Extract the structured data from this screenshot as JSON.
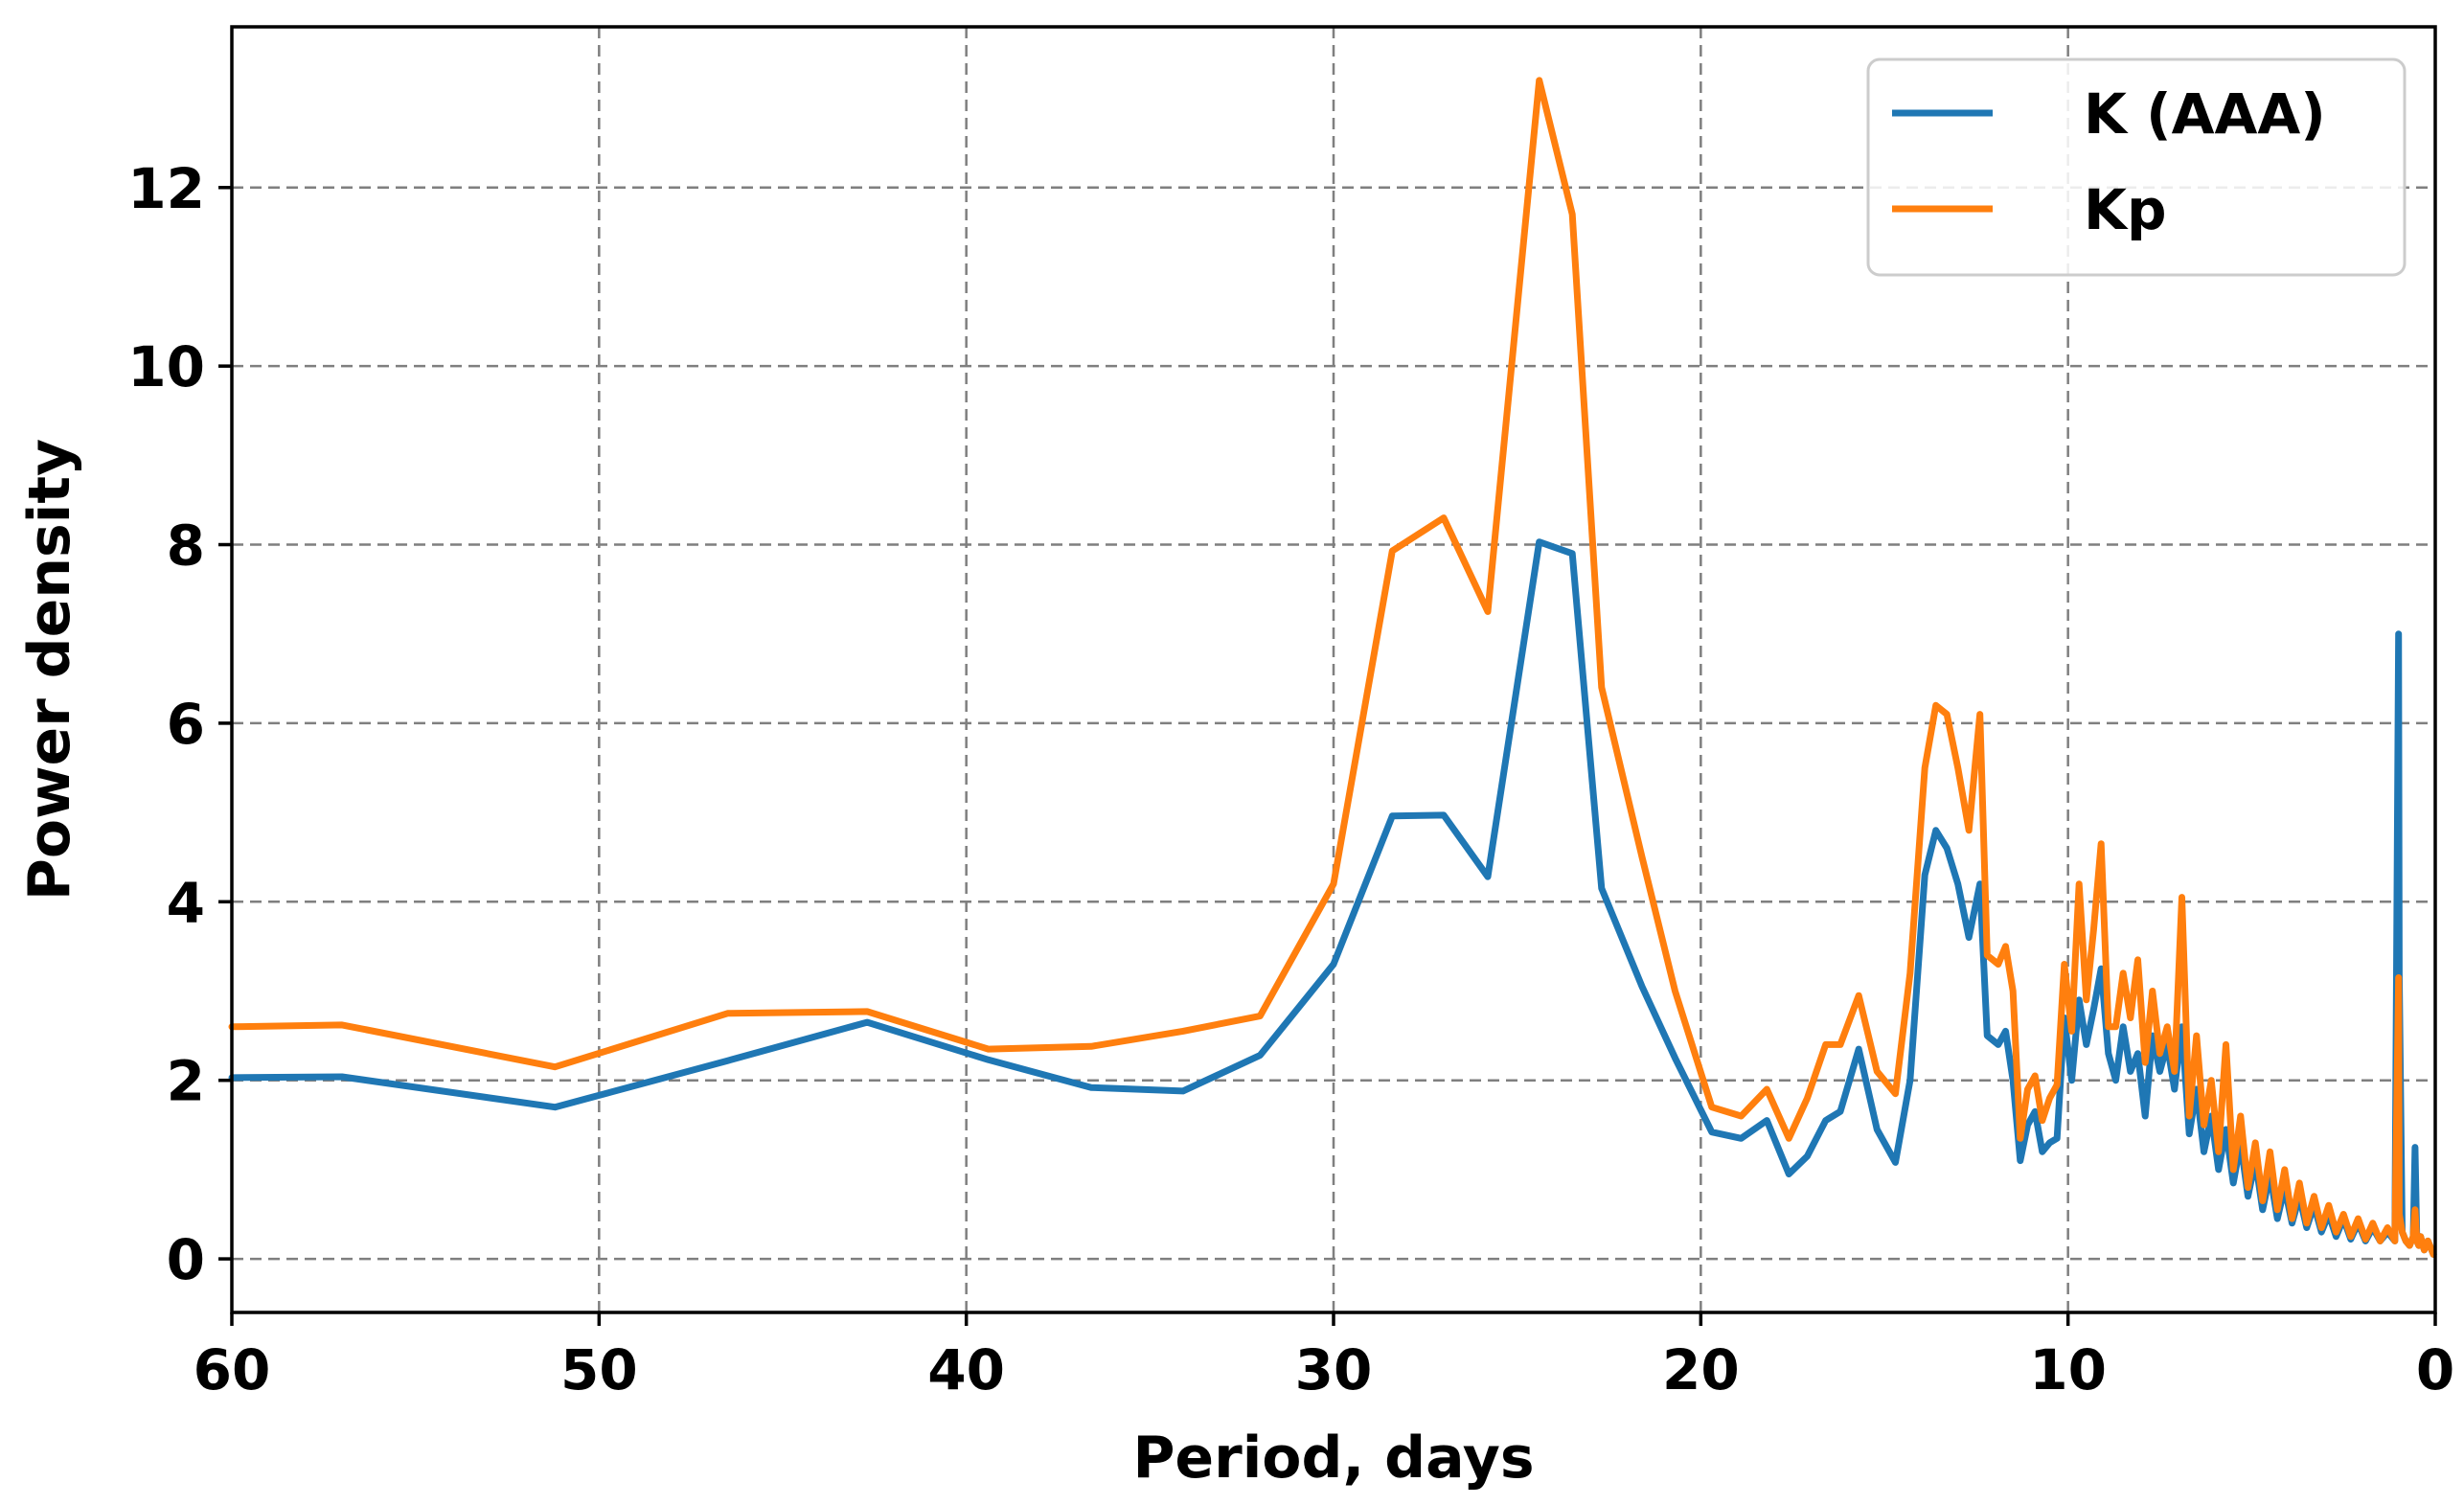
{
  "chart_data": {
    "type": "line",
    "xlabel": "Period, days",
    "ylabel": "Power density",
    "xlim": [
      60,
      0
    ],
    "ylim": [
      -0.6,
      13.8
    ],
    "x_ticks": [
      60,
      50,
      40,
      30,
      20,
      10,
      0
    ],
    "y_ticks": [
      0,
      2,
      4,
      6,
      8,
      10,
      12
    ],
    "x_tick_labels": [
      "60",
      "50",
      "40",
      "30",
      "20",
      "10",
      "0"
    ],
    "y_tick_labels": [
      "0",
      "2",
      "4",
      "6",
      "8",
      "10",
      "12"
    ],
    "grid": true,
    "legend": {
      "position": "top-right"
    },
    "series": [
      {
        "name": "K (AAA)",
        "color": "#1f77b4",
        "x": [
          60,
          57,
          51.2,
          46.5,
          42.7,
          39.4,
          36.6,
          34.1,
          32,
          30,
          28.4,
          27,
          25.8,
          24.4,
          23.5,
          22.7,
          21.6,
          20.7,
          19.7,
          18.9,
          18.2,
          17.6,
          17.1,
          16.6,
          16.2,
          15.7,
          15.2,
          14.7,
          14.3,
          13.9,
          13.6,
          13.3,
          13,
          12.7,
          12.4,
          12.2,
          11.9,
          11.7,
          11.5,
          11.3,
          11.1,
          10.9,
          10.7,
          10.5,
          10.3,
          10.1,
          9.9,
          9.7,
          9.5,
          9.3,
          9.1,
          8.9,
          8.7,
          8.5,
          8.3,
          8.1,
          7.9,
          7.7,
          7.5,
          7.3,
          7.1,
          6.9,
          6.7,
          6.5,
          6.3,
          6.1,
          5.9,
          5.7,
          5.5,
          5.3,
          5.1,
          4.9,
          4.7,
          4.5,
          4.3,
          4.1,
          3.9,
          3.7,
          3.5,
          3.3,
          3.1,
          2.9,
          2.7,
          2.5,
          2.3,
          2.1,
          1.9,
          1.7,
          1.5,
          1.3,
          1.1,
          1.0,
          0.98,
          0.9,
          0.8,
          0.7,
          0.6,
          0.55,
          0.5,
          0.45,
          0.4,
          0.3,
          0.2,
          0.1,
          0.05
        ],
        "y": [
          2.03,
          2.04,
          1.7,
          2.22,
          2.65,
          2.23,
          1.92,
          1.88,
          2.28,
          3.3,
          4.96,
          4.97,
          4.28,
          8.03,
          7.9,
          4.15,
          3.05,
          2.25,
          1.42,
          1.35,
          1.55,
          0.95,
          1.15,
          1.55,
          1.65,
          2.35,
          1.45,
          1.08,
          2.0,
          4.3,
          4.8,
          4.6,
          4.2,
          3.6,
          4.2,
          2.5,
          2.4,
          2.55,
          2.0,
          1.1,
          1.5,
          1.65,
          1.2,
          1.3,
          1.35,
          2.7,
          2.0,
          2.9,
          2.4,
          2.8,
          3.25,
          2.3,
          2.0,
          2.6,
          2.1,
          2.3,
          1.6,
          2.5,
          2.1,
          2.4,
          1.9,
          2.6,
          1.4,
          1.9,
          1.2,
          1.6,
          1.0,
          1.45,
          0.85,
          1.3,
          0.7,
          1.1,
          0.55,
          0.95,
          0.45,
          0.8,
          0.4,
          0.7,
          0.35,
          0.6,
          0.3,
          0.5,
          0.25,
          0.45,
          0.22,
          0.4,
          0.2,
          0.35,
          0.2,
          0.3,
          0.2,
          7.0,
          3.2,
          0.3,
          0.2,
          0.15,
          0.25,
          1.25,
          0.2,
          0.15,
          0.25,
          0.1,
          0.2,
          0.1,
          0.05
        ]
      },
      {
        "name": "Kp",
        "color": "#ff7f0e",
        "x": [
          60,
          57,
          51.2,
          46.5,
          42.7,
          39.4,
          36.6,
          34.1,
          32,
          30,
          28.4,
          27,
          25.8,
          24.4,
          23.5,
          22.7,
          21.6,
          20.7,
          19.7,
          18.9,
          18.2,
          17.6,
          17.1,
          16.6,
          16.2,
          15.7,
          15.2,
          14.7,
          14.3,
          13.9,
          13.6,
          13.3,
          13,
          12.7,
          12.4,
          12.2,
          11.9,
          11.7,
          11.5,
          11.3,
          11.1,
          10.9,
          10.7,
          10.5,
          10.3,
          10.1,
          9.9,
          9.7,
          9.5,
          9.3,
          9.1,
          8.9,
          8.7,
          8.5,
          8.3,
          8.1,
          7.9,
          7.7,
          7.5,
          7.3,
          7.1,
          6.9,
          6.7,
          6.5,
          6.3,
          6.1,
          5.9,
          5.7,
          5.5,
          5.3,
          5.1,
          4.9,
          4.7,
          4.5,
          4.3,
          4.1,
          3.9,
          3.7,
          3.5,
          3.3,
          3.1,
          2.9,
          2.7,
          2.5,
          2.3,
          2.1,
          1.9,
          1.7,
          1.5,
          1.3,
          1.1,
          1.0,
          0.98,
          0.9,
          0.8,
          0.7,
          0.6,
          0.55,
          0.5,
          0.45,
          0.4,
          0.3,
          0.2,
          0.1,
          0.05
        ],
        "y": [
          2.6,
          2.62,
          2.15,
          2.75,
          2.77,
          2.35,
          2.38,
          2.55,
          2.72,
          4.2,
          7.93,
          8.3,
          7.25,
          13.2,
          11.7,
          6.4,
          4.5,
          3.0,
          1.7,
          1.6,
          1.9,
          1.35,
          1.8,
          2.4,
          2.4,
          2.95,
          2.1,
          1.85,
          3.2,
          5.5,
          6.2,
          6.1,
          5.5,
          4.8,
          6.1,
          3.4,
          3.3,
          3.5,
          3.0,
          1.35,
          1.9,
          2.05,
          1.55,
          1.8,
          1.95,
          3.3,
          2.55,
          4.2,
          2.9,
          3.7,
          4.65,
          2.6,
          2.6,
          3.2,
          2.7,
          3.35,
          2.2,
          3.0,
          2.3,
          2.6,
          2.1,
          4.05,
          1.6,
          2.5,
          1.5,
          2.0,
          1.2,
          2.4,
          1.0,
          1.6,
          0.8,
          1.3,
          0.65,
          1.2,
          0.55,
          1.0,
          0.45,
          0.85,
          0.4,
          0.7,
          0.35,
          0.6,
          0.3,
          0.5,
          0.25,
          0.45,
          0.22,
          0.4,
          0.2,
          0.35,
          0.2,
          3.15,
          0.5,
          0.3,
          0.2,
          0.15,
          0.25,
          0.55,
          0.2,
          0.15,
          0.25,
          0.1,
          0.2,
          0.1,
          0.05
        ]
      }
    ]
  }
}
